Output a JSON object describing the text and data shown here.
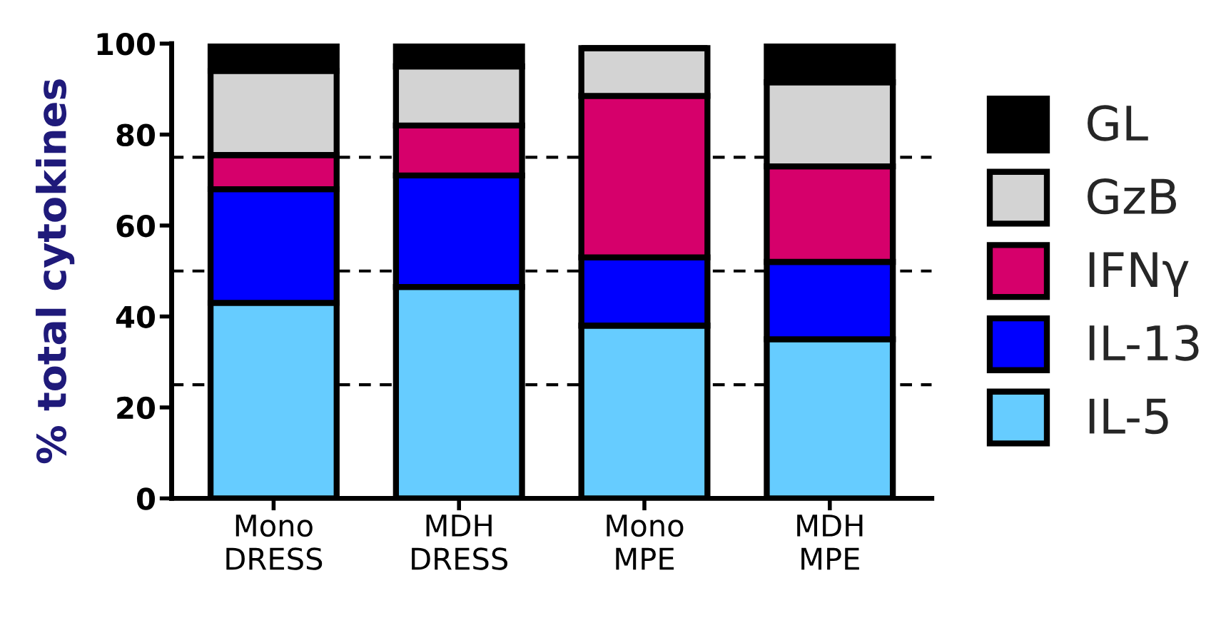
{
  "chart_data": {
    "type": "bar",
    "stacked": true,
    "ylabel": "% total cytokines",
    "categories": [
      "Mono\nDRESS",
      "MDH\nDRESS",
      "Mono\nMPE",
      "MDH\nMPE"
    ],
    "series": [
      {
        "name": "IL-5",
        "color": "#66ccff",
        "values": [
          43,
          46.5,
          38,
          35
        ]
      },
      {
        "name": "IL-13",
        "color": "#0000ff",
        "values": [
          25,
          24.5,
          15,
          17
        ]
      },
      {
        "name": "IFNγ",
        "color": "#d6006b",
        "values": [
          7.5,
          11,
          35.5,
          21
        ]
      },
      {
        "name": "GzB",
        "color": "#d3d3d3",
        "values": [
          18.5,
          13,
          10.5,
          18.5
        ]
      },
      {
        "name": "GL",
        "color": "#000000",
        "values": [
          6,
          5,
          0,
          8
        ]
      }
    ],
    "ylim": [
      0,
      100
    ],
    "yticks": [
      0,
      20,
      40,
      60,
      80,
      100
    ],
    "ref_lines": [
      {
        "axis": "y",
        "value": 25,
        "line_style": "dashed",
        "color": "#000000"
      },
      {
        "axis": "y",
        "value": 50,
        "line_style": "dashed",
        "color": "#000000"
      },
      {
        "axis": "y",
        "value": 75,
        "line_style": "dashed",
        "color": "#000000"
      }
    ],
    "legend": "right",
    "grid": false
  }
}
